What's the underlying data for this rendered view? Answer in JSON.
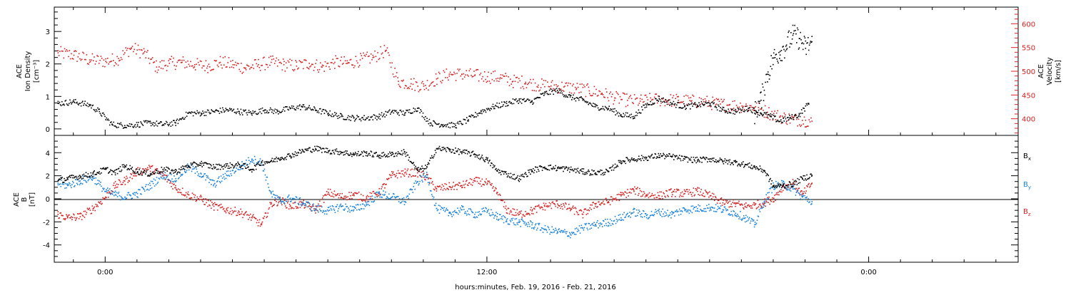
{
  "chart_data": [
    {
      "type": "scatter",
      "panel": "plasma",
      "x_unit": "hours from 00:00 Feb. 20, 2016",
      "xlim": [
        -1.6,
        28.7
      ],
      "ylabel_left": [
        "ACE",
        "Ion Density",
        "[cm⁻³]"
      ],
      "ylabel_right": [
        "ACE",
        "Velocity",
        "[km/s]"
      ],
      "ylim_left": [
        -0.2,
        3.75
      ],
      "ylim_right": [
        365,
        635
      ],
      "yticks_left": [
        "0",
        "1",
        "2",
        "3"
      ],
      "yticks_right": [
        "400",
        "450",
        "500",
        "550",
        "600"
      ],
      "series": [
        {
          "axis": "left",
          "color": "#000000",
          "x": [
            -1.5,
            -1.0,
            -0.5,
            -0.2,
            0.2,
            0.6,
            1.0,
            1.4,
            1.8,
            2.2,
            2.6,
            3.0,
            3.4,
            3.8,
            4.2,
            4.6,
            5.0,
            5.4,
            5.8,
            6.2,
            6.6,
            7.0,
            7.4,
            7.8,
            8.2,
            8.6,
            9.0,
            9.4,
            9.8,
            10.2,
            10.6,
            11.0,
            11.4,
            11.8,
            12.2,
            12.6,
            13.0,
            13.4,
            13.8,
            14.2,
            14.6,
            15.0,
            15.4,
            15.8,
            16.2,
            16.6,
            17.0,
            17.4,
            17.8,
            18.2,
            18.6,
            19.0,
            19.4,
            19.8,
            20.2,
            20.6,
            20.9,
            21.2,
            21.5,
            21.8,
            22.1
          ],
          "y": [
            0.8,
            0.85,
            0.75,
            0.55,
            0.15,
            0.12,
            0.15,
            0.2,
            0.15,
            0.2,
            0.5,
            0.5,
            0.55,
            0.6,
            0.55,
            0.5,
            0.6,
            0.55,
            0.65,
            0.7,
            0.6,
            0.5,
            0.4,
            0.35,
            0.35,
            0.4,
            0.55,
            0.5,
            0.65,
            0.2,
            0.15,
            0.12,
            0.3,
            0.55,
            0.7,
            0.8,
            0.9,
            0.85,
            1.1,
            1.2,
            1.0,
            0.9,
            0.7,
            0.65,
            0.45,
            0.4,
            0.75,
            0.95,
            0.8,
            0.7,
            0.75,
            0.8,
            0.6,
            0.55,
            0.65,
            0.5,
            0.4,
            0.25,
            0.35,
            0.45,
            0.8
          ]
        },
        {
          "axis": "left",
          "color": "#000000",
          "x": [
            20.4,
            20.6,
            20.8,
            21.0,
            21.2,
            21.4,
            21.6,
            21.8,
            22.0,
            22.2
          ],
          "y": [
            0.5,
            0.9,
            1.7,
            2.2,
            2.4,
            2.6,
            2.9,
            2.8,
            2.5,
            2.7
          ]
        },
        {
          "axis": "right",
          "color": "#d42020",
          "x": [
            -1.5,
            -1.0,
            -0.5,
            0.0,
            0.4,
            0.8,
            1.2,
            1.6,
            2.0,
            2.4,
            2.8,
            3.2,
            3.6,
            4.0,
            4.4,
            4.8,
            5.2,
            5.6,
            6.0,
            6.4,
            6.8,
            7.2,
            7.6,
            8.0,
            8.4,
            8.8,
            9.2,
            9.6,
            10.0,
            10.4,
            10.8,
            11.2,
            11.6,
            12.0,
            12.4,
            12.8,
            13.2,
            13.6,
            14.0,
            14.4,
            14.8,
            15.2,
            15.6,
            16.0,
            16.4,
            16.8,
            17.2,
            17.6,
            18.0,
            18.4,
            18.8,
            19.2,
            19.6,
            20.0,
            20.4,
            20.8,
            21.2,
            21.6,
            22.0,
            22.2
          ],
          "y": [
            540,
            535,
            525,
            522,
            528,
            550,
            540,
            510,
            518,
            520,
            515,
            512,
            520,
            515,
            508,
            515,
            520,
            515,
            512,
            518,
            510,
            520,
            518,
            525,
            530,
            545,
            480,
            475,
            470,
            485,
            495,
            495,
            492,
            490,
            488,
            480,
            478,
            472,
            470,
            468,
            465,
            460,
            455,
            445,
            440,
            438,
            442,
            440,
            440,
            438,
            437,
            432,
            430,
            428,
            425,
            415,
            405,
            400,
            398,
            396
          ]
        }
      ]
    },
    {
      "type": "scatter",
      "panel": "imf",
      "x_unit": "hours from 00:00 Feb. 20, 2016",
      "xlim": [
        -1.6,
        28.7
      ],
      "ylabel_left": [
        "ACE",
        "B",
        "[nT]"
      ],
      "ylim": [
        -5.5,
        5.5
      ],
      "yticks": [
        "-4",
        "-2",
        "0",
        "2",
        "4"
      ],
      "series": [
        {
          "name": "Bx",
          "color": "#000000",
          "x": [
            -1.5,
            -1.2,
            -0.8,
            -0.4,
            0.0,
            0.3,
            0.6,
            1.0,
            1.4,
            1.8,
            2.2,
            2.6,
            3.0,
            3.4,
            3.8,
            4.2,
            4.6,
            4.9,
            5.2,
            5.5,
            5.8,
            6.2,
            6.6,
            7.0,
            7.4,
            7.8,
            8.2,
            8.6,
            9.0,
            9.4,
            9.8,
            10.1,
            10.4,
            10.8,
            11.2,
            11.6,
            12.0,
            12.3,
            12.6,
            13.0,
            13.4,
            13.8,
            14.2,
            14.6,
            15.0,
            15.4,
            15.8,
            16.2,
            16.6,
            17.0,
            17.4,
            17.8,
            18.2,
            18.6,
            19.0,
            19.4,
            19.8,
            20.1,
            20.4,
            20.7,
            21.0,
            21.3,
            21.6,
            21.9,
            22.2
          ],
          "y": [
            1.6,
            1.8,
            2.0,
            2.2,
            2.6,
            2.3,
            2.9,
            2.4,
            2.2,
            2.6,
            2.4,
            2.9,
            3.1,
            2.8,
            2.9,
            3.0,
            2.6,
            3.2,
            3.3,
            3.6,
            3.8,
            4.2,
            4.4,
            4.2,
            4.1,
            3.9,
            4.0,
            3.8,
            3.9,
            4.1,
            2.5,
            2.8,
            4.4,
            4.3,
            4.1,
            3.9,
            3.4,
            2.5,
            2.2,
            1.8,
            2.5,
            2.8,
            2.7,
            2.6,
            2.4,
            2.3,
            2.4,
            3.3,
            3.5,
            3.6,
            3.8,
            3.7,
            3.5,
            3.4,
            3.5,
            3.3,
            3.2,
            3.0,
            2.8,
            2.5,
            1.1,
            1.2,
            1.3,
            1.8,
            2.1
          ]
        },
        {
          "name": "By",
          "color": "#1a82d8",
          "x": [
            -1.5,
            -1.2,
            -0.8,
            -0.4,
            0.0,
            0.3,
            0.6,
            1.0,
            1.4,
            1.8,
            2.2,
            2.6,
            3.0,
            3.4,
            3.8,
            4.2,
            4.6,
            4.9,
            5.2,
            5.5,
            5.8,
            6.2,
            6.6,
            7.0,
            7.4,
            7.8,
            8.2,
            8.6,
            9.0,
            9.4,
            9.8,
            10.1,
            10.4,
            10.8,
            11.2,
            11.6,
            12.0,
            12.3,
            12.6,
            13.0,
            13.4,
            13.8,
            14.2,
            14.6,
            15.0,
            15.4,
            15.8,
            16.2,
            16.6,
            17.0,
            17.4,
            17.8,
            18.2,
            18.6,
            19.0,
            19.4,
            19.8,
            20.1,
            20.4,
            20.7,
            21.0,
            21.3,
            21.6,
            21.9,
            22.2
          ],
          "y": [
            1.4,
            1.2,
            1.6,
            1.9,
            0.7,
            0.4,
            0.2,
            0.5,
            1.2,
            2.1,
            1.8,
            2.8,
            2.2,
            1.3,
            2.1,
            2.8,
            3.5,
            3.2,
            0.5,
            -0.2,
            0.1,
            -0.3,
            -0.8,
            -1.0,
            -0.6,
            -0.9,
            -0.4,
            0.5,
            0.2,
            -0.2,
            1.5,
            2.1,
            -0.8,
            -1.2,
            -0.9,
            -1.3,
            -1.0,
            -1.5,
            -1.8,
            -2.0,
            -2.2,
            -2.6,
            -2.8,
            -3.0,
            -2.5,
            -2.2,
            -2.0,
            -1.6,
            -1.1,
            -1.4,
            -1.1,
            -1.3,
            -0.9,
            -0.8,
            -0.7,
            -0.9,
            -1.2,
            -1.6,
            -2.2,
            -0.2,
            1.2,
            1.3,
            0.9,
            0.2,
            -0.2
          ]
        },
        {
          "name": "Bz",
          "color": "#d42020",
          "x": [
            -1.5,
            -1.2,
            -0.8,
            -0.4,
            0.0,
            0.3,
            0.6,
            1.0,
            1.4,
            1.8,
            2.2,
            2.6,
            3.0,
            3.4,
            3.8,
            4.2,
            4.6,
            4.9,
            5.2,
            5.5,
            5.8,
            6.2,
            6.6,
            7.0,
            7.4,
            7.8,
            8.2,
            8.6,
            9.0,
            9.4,
            9.8,
            10.1,
            10.4,
            10.8,
            11.2,
            11.6,
            12.0,
            12.3,
            12.6,
            13.0,
            13.4,
            13.8,
            14.2,
            14.6,
            15.0,
            15.4,
            15.8,
            16.2,
            16.6,
            17.0,
            17.4,
            17.8,
            18.2,
            18.6,
            19.0,
            19.4,
            19.8,
            20.1,
            20.4,
            20.7,
            21.0,
            21.3,
            21.6,
            21.9,
            22.2
          ],
          "y": [
            -1.3,
            -1.6,
            -1.5,
            -0.8,
            0.2,
            1.2,
            1.6,
            2.4,
            2.7,
            2.1,
            1.0,
            0.4,
            0.0,
            -0.6,
            -0.9,
            -1.1,
            -1.6,
            -2.2,
            -0.4,
            -0.1,
            -0.6,
            -0.4,
            -0.9,
            0.6,
            0.2,
            0.4,
            0.1,
            0.6,
            2.1,
            2.3,
            2.3,
            1.9,
            0.9,
            1.1,
            1.2,
            1.6,
            1.4,
            0.6,
            -0.9,
            -1.3,
            -1.0,
            -0.6,
            -0.4,
            -0.8,
            -1.3,
            -0.4,
            -0.2,
            0.3,
            0.8,
            0.4,
            0.3,
            0.6,
            0.5,
            0.7,
            0.3,
            -0.3,
            -0.4,
            -0.6,
            -0.5,
            -0.3,
            0.1,
            1.1,
            1.4,
            0.4,
            1.4
          ]
        }
      ],
      "legend": [
        {
          "label": "B",
          "sub": "x",
          "color": "#000000"
        },
        {
          "label": "B",
          "sub": "y",
          "color": "#1a82d8"
        },
        {
          "label": "B",
          "sub": "z",
          "color": "#d42020"
        }
      ]
    }
  ],
  "x_axis": {
    "tick_labels": [
      {
        "hour": 0,
        "label": "0:00"
      },
      {
        "hour": 12,
        "label": "12:00"
      },
      {
        "hour": 24,
        "label": "0:00"
      }
    ],
    "xlabel": "hours:minutes, Feb. 19, 2016 - Feb. 21, 2016"
  },
  "colors": {
    "black": "#000000",
    "red": "#d42020",
    "blue": "#1a82d8",
    "frame": "#000000"
  }
}
